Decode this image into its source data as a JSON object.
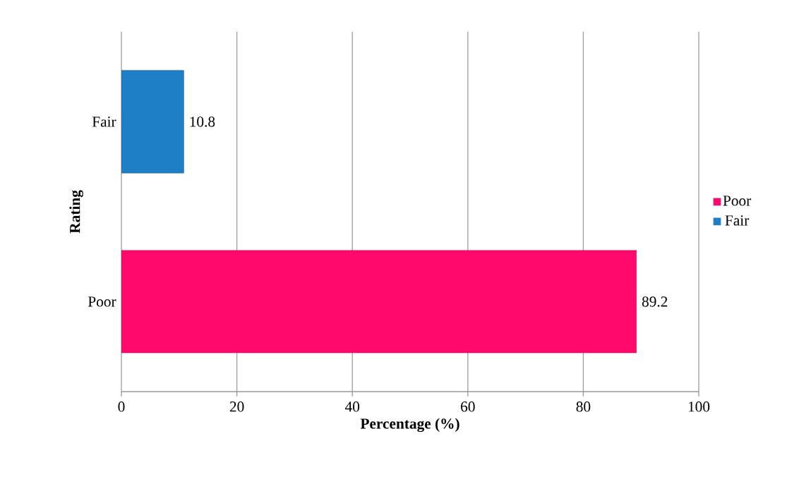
{
  "chart_data": {
    "type": "bar",
    "orientation": "horizontal",
    "xlabel": "Percentage (%)",
    "ylabel": "Rating",
    "categories": [
      "Fair",
      "Poor"
    ],
    "series": [
      {
        "name": "Fair",
        "color": "#1f7fc6",
        "values": [
          10.8,
          null
        ]
      },
      {
        "name": "Poor",
        "color": "#ff0a6c",
        "values": [
          null,
          89.2
        ]
      }
    ],
    "xlim": [
      0,
      100
    ],
    "xticks": [
      0,
      20,
      40,
      60,
      80,
      100
    ],
    "grid": "x",
    "legend": "right",
    "data_labels": true
  }
}
